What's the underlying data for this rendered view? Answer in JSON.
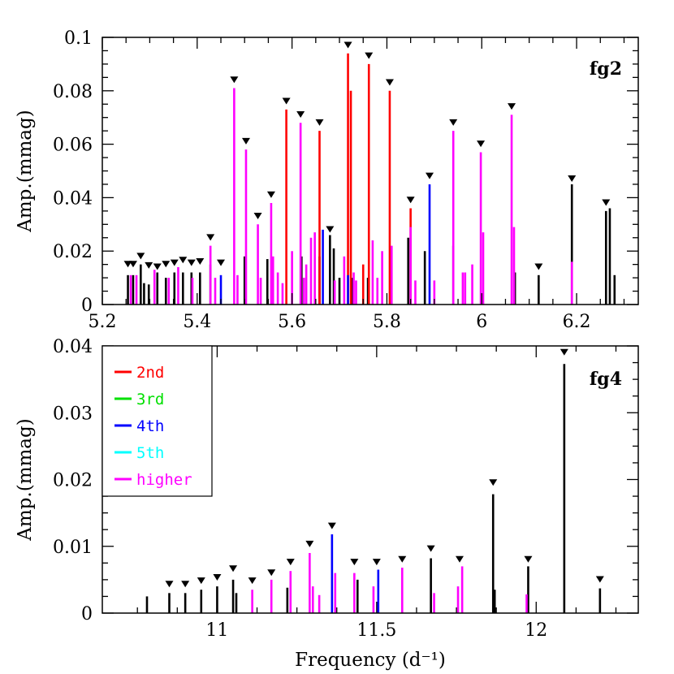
{
  "colors": {
    "fundamental": "#000000",
    "2nd": "#ff0000",
    "3rd": "#00e000",
    "4th": "#0000ff",
    "5th": "#00ffff",
    "higher": "#ff00ff"
  },
  "legend": [
    {
      "key": "2nd",
      "label": "2nd"
    },
    {
      "key": "3rd",
      "label": "3rd"
    },
    {
      "key": "4th",
      "label": "4th"
    },
    {
      "key": "5th",
      "label": "5th"
    },
    {
      "key": "higher",
      "label": "higher"
    }
  ],
  "xlabel": "Frequency (d⁻¹)",
  "chart_data": [
    {
      "type": "bar",
      "panel_label": "fg2",
      "ylabel": "Amp.(mmag)",
      "xlim": [
        5.2,
        6.33
      ],
      "ylim": [
        0,
        0.1
      ],
      "xticks": [
        5.2,
        5.4,
        5.6,
        5.8,
        6,
        6.2
      ],
      "xtick_labels": [
        "5.2",
        "5.4",
        "5.6",
        "5.8",
        "6",
        "6.2"
      ],
      "yticks": [
        0,
        0.02,
        0.04,
        0.06,
        0.08,
        0.1
      ],
      "ytick_labels": [
        "0",
        "0.02",
        "0.04",
        "0.06",
        "0.08",
        "0.1"
      ],
      "markers": [
        5.254,
        5.265,
        5.281,
        5.298,
        5.316,
        5.334,
        5.352,
        5.37,
        5.388,
        5.406,
        5.428,
        5.45,
        5.478,
        5.503,
        5.528,
        5.556,
        5.588,
        5.618,
        5.658,
        5.68,
        5.718,
        5.762,
        5.806,
        5.85,
        5.89,
        5.94,
        5.998,
        6.063,
        6.12,
        6.19,
        6.262
      ],
      "marker_values": [
        0.013,
        0.013,
        0.016,
        0.0125,
        0.012,
        0.013,
        0.0135,
        0.0145,
        0.0135,
        0.014,
        0.023,
        0.0135,
        0.082,
        0.059,
        0.031,
        0.039,
        0.074,
        0.069,
        0.066,
        0.026,
        0.095,
        0.091,
        0.081,
        0.037,
        0.046,
        0.066,
        0.058,
        0.072,
        0.012,
        0.045,
        0.036
      ],
      "series": [
        {
          "key": "fundamental",
          "x": [
            5.254,
            5.265,
            5.281,
            5.288,
            5.298,
            5.316,
            5.334,
            5.352,
            5.37,
            5.388,
            5.406,
            5.428,
            5.5,
            5.548,
            5.62,
            5.658,
            5.68,
            5.688,
            5.7,
            5.726,
            5.76,
            5.845,
            5.88,
            5.94,
            6.07,
            6.12,
            6.19,
            6.262,
            6.27,
            6.28
          ],
          "values": [
            0.011,
            0.011,
            0.015,
            0.008,
            0.0075,
            0.012,
            0.01,
            0.012,
            0.012,
            0.012,
            0.012,
            0.015,
            0.018,
            0.017,
            0.018,
            0.018,
            0.026,
            0.021,
            0.01,
            0.01,
            0.01,
            0.025,
            0.02,
            0.022,
            0.012,
            0.011,
            0.045,
            0.035,
            0.036,
            0.011
          ]
        },
        {
          "key": "2nd",
          "x": [
            5.588,
            5.658,
            5.718,
            5.724,
            5.75,
            5.762,
            5.806,
            5.85
          ],
          "values": [
            0.073,
            0.065,
            0.094,
            0.08,
            0.015,
            0.09,
            0.08,
            0.036
          ]
        },
        {
          "key": "4th",
          "x": [
            5.45,
            5.665,
            5.718,
            5.89
          ],
          "values": [
            0.011,
            0.028,
            0.011,
            0.045
          ]
        },
        {
          "key": "higher",
          "x": [
            5.26,
            5.272,
            5.31,
            5.34,
            5.36,
            5.39,
            5.428,
            5.438,
            5.478,
            5.485,
            5.503,
            5.528,
            5.534,
            5.556,
            5.56,
            5.57,
            5.58,
            5.6,
            5.618,
            5.625,
            5.63,
            5.64,
            5.648,
            5.69,
            5.71,
            5.73,
            5.735,
            5.77,
            5.78,
            5.79,
            5.81,
            5.85,
            5.86,
            5.9,
            5.94,
            5.96,
            5.965,
            5.98,
            5.998,
            6.003,
            6.063,
            6.068,
            6.19
          ],
          "values": [
            0.011,
            0.011,
            0.013,
            0.01,
            0.014,
            0.01,
            0.022,
            0.01,
            0.081,
            0.011,
            0.058,
            0.03,
            0.01,
            0.038,
            0.018,
            0.012,
            0.008,
            0.02,
            0.068,
            0.01,
            0.015,
            0.025,
            0.027,
            0.009,
            0.018,
            0.012,
            0.009,
            0.024,
            0.01,
            0.02,
            0.022,
            0.029,
            0.009,
            0.009,
            0.065,
            0.012,
            0.012,
            0.015,
            0.057,
            0.027,
            0.071,
            0.029,
            0.016
          ]
        }
      ]
    },
    {
      "type": "bar",
      "panel_label": "fg4",
      "ylabel": "Amp.(mmag)",
      "xlim": [
        10.64,
        12.32
      ],
      "ylim": [
        0,
        0.04
      ],
      "xticks": [
        11,
        11.5,
        12
      ],
      "xtick_labels": [
        "11",
        "11.5",
        "12"
      ],
      "yticks": [
        0,
        0.01,
        0.02,
        0.03,
        0.04
      ],
      "ytick_labels": [
        "0",
        "0.01",
        "0.02",
        "0.03",
        "0.04"
      ],
      "markers": [
        10.85,
        10.9,
        10.95,
        11.0,
        11.05,
        11.11,
        11.17,
        11.23,
        11.29,
        11.36,
        11.43,
        11.5,
        11.58,
        11.67,
        11.76,
        11.865,
        11.975,
        12.088,
        12.2
      ],
      "marker_values": [
        0.0035,
        0.0035,
        0.004,
        0.0045,
        0.0058,
        0.004,
        0.0052,
        0.0068,
        0.0095,
        0.0122,
        0.0068,
        0.0068,
        0.0072,
        0.0088,
        0.0072,
        0.0187,
        0.0072,
        0.0382,
        0.0042
      ],
      "series": [
        {
          "key": "fundamental",
          "x": [
            10.78,
            10.85,
            10.9,
            10.95,
            11.0,
            11.05,
            11.06,
            11.22,
            11.44,
            11.67,
            11.865,
            11.87,
            11.975,
            12.088,
            12.2
          ],
          "values": [
            0.0025,
            0.003,
            0.003,
            0.0035,
            0.004,
            0.005,
            0.003,
            0.0038,
            0.005,
            0.0082,
            0.0178,
            0.0035,
            0.007,
            0.0373,
            0.0037
          ]
        },
        {
          "key": "4th",
          "x": [
            11.36,
            11.505
          ],
          "values": [
            0.0118,
            0.0065
          ]
        },
        {
          "key": "higher",
          "x": [
            11.11,
            11.17,
            11.23,
            11.29,
            11.3,
            11.32,
            11.37,
            11.43,
            11.49,
            11.58,
            11.68,
            11.755,
            11.768,
            11.97
          ],
          "values": [
            0.0035,
            0.005,
            0.0063,
            0.009,
            0.004,
            0.0027,
            0.006,
            0.006,
            0.004,
            0.0068,
            0.003,
            0.004,
            0.007,
            0.0028
          ]
        }
      ]
    }
  ]
}
